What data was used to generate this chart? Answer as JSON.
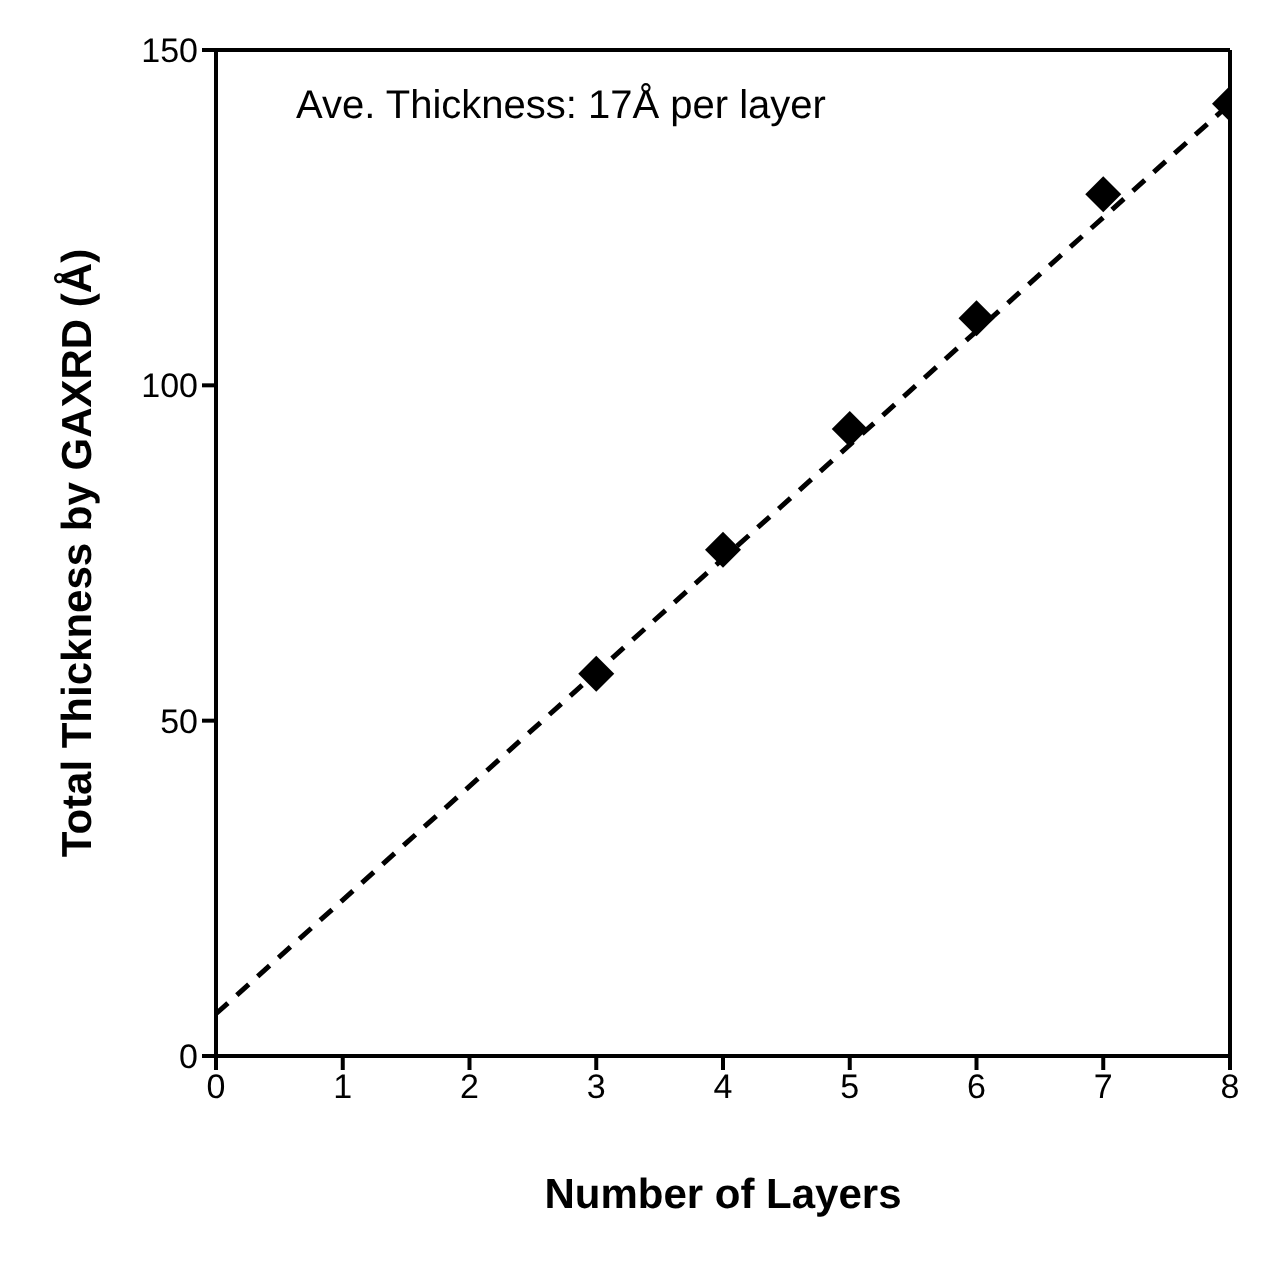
{
  "chart_data": {
    "type": "scatter",
    "xlabel": "Number of Layers",
    "ylabel": "Total Thickness by GAXRD  (Å)",
    "annotations": [
      "Ave. Thickness: 17Å per layer"
    ],
    "xlim": [
      0,
      8
    ],
    "xticks": [
      0,
      1,
      2,
      3,
      4,
      5,
      6,
      7,
      8
    ],
    "ylim": [
      0,
      150
    ],
    "yticks": [
      0,
      50,
      100,
      150
    ],
    "marker": "diamond",
    "series": [
      {
        "color": "#000000",
        "x": [
          3,
          4,
          5,
          6,
          7,
          8
        ],
        "values": [
          57,
          75.5,
          93.5,
          110,
          128.5,
          142
        ]
      },
      {
        "type": "line",
        "color": "#000000",
        "line_style": "dashed",
        "marker": "none",
        "x": [
          0,
          8
        ],
        "values": [
          6.3,
          142
        ]
      }
    ]
  }
}
